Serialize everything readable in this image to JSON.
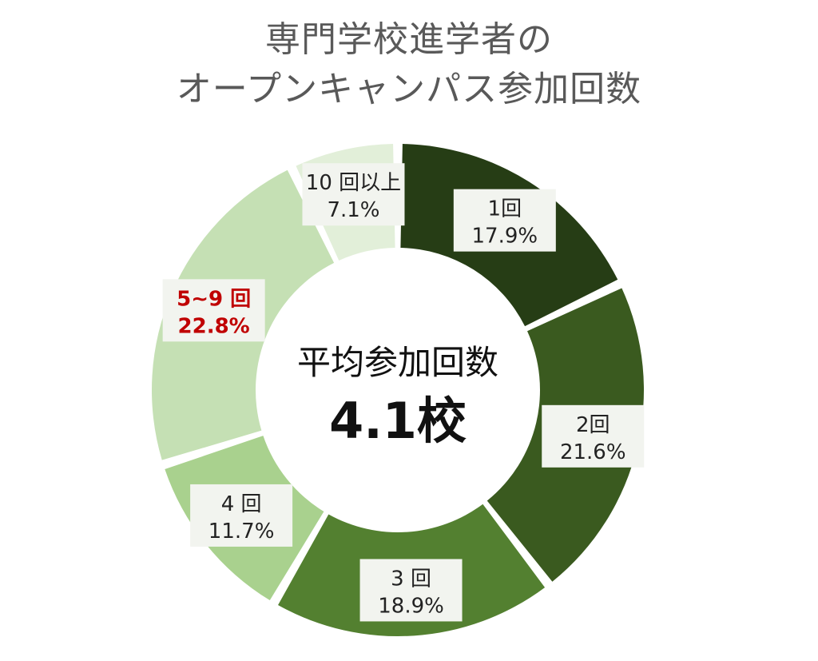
{
  "chart_data": {
    "type": "pie",
    "style": "donut",
    "title_lines": [
      "専門学校進学者の",
      "オープンキャンパス参加回数"
    ],
    "center_label": "平均参加回数",
    "center_value": "4.1校",
    "categories": [
      "1回",
      "2回",
      "3回",
      "4回",
      "5~9回",
      "10回以上"
    ],
    "display_categories": [
      "1回",
      "2回",
      "3 回",
      "4 回",
      "5~9 回",
      "10 回以上"
    ],
    "values": [
      17.9,
      21.6,
      18.9,
      11.7,
      22.8,
      7.1
    ],
    "value_labels": [
      "17.9%",
      "21.6%",
      "18.9%",
      "11.7%",
      "22.8%",
      "7.1%"
    ],
    "colors": [
      "#263d15",
      "#3a5a1f",
      "#538030",
      "#a9d18e",
      "#c5e0b4",
      "#e2efd9"
    ],
    "highlight_color": "#c00000",
    "highlight_index": 4
  }
}
